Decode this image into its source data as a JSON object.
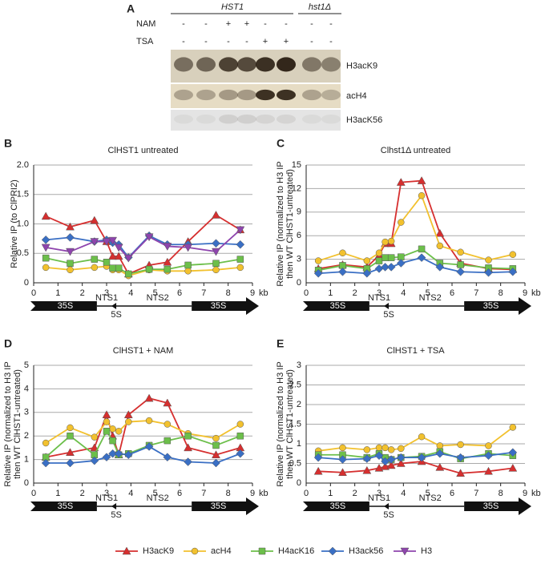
{
  "panel_a": {
    "panel": "A",
    "groups": [
      "HST1",
      "hst1Δ"
    ],
    "rows": [
      {
        "label": "NAM",
        "signs": [
          "-",
          "-",
          "+",
          "+",
          "-",
          "-",
          "-",
          "-"
        ]
      },
      {
        "label": "TSA",
        "signs": [
          "-",
          "-",
          "-",
          "-",
          "+",
          "+",
          "-",
          "-"
        ]
      }
    ],
    "blots": [
      "H3acK9",
      "acH4",
      "H3acK56"
    ]
  },
  "chart_data": [
    {
      "panel": "B",
      "type": "line",
      "title": "ClHST1 untreated",
      "ylabel": [
        "Relative IP (to ClPRI2)"
      ],
      "xlabel": "kb",
      "annotations": [
        "35S",
        "NTS1",
        "5S",
        "NTS2",
        "35S"
      ],
      "x": [
        0.5,
        1.5,
        2.5,
        3,
        3.25,
        3.5,
        3.9,
        4.75,
        5.5,
        6.35,
        7.5,
        8.5
      ],
      "xlim": [
        0,
        9
      ],
      "xticks": [
        0,
        1,
        2,
        3,
        4,
        5,
        6,
        7,
        8,
        9
      ],
      "ylim": [
        0,
        2
      ],
      "yticks": [
        0,
        0.5,
        {
          "value": 1,
          "label": "1.0"
        },
        1.5,
        {
          "value": 2,
          "label": "2.0"
        }
      ],
      "grid": true,
      "series": [
        {
          "name": "H3acK9",
          "color": "#d62f2f",
          "marker": "triangle",
          "values": [
            1.13,
            0.95,
            1.06,
            0.7,
            0.45,
            0.45,
            0.15,
            0.3,
            0.35,
            0.7,
            1.15,
            0.9
          ]
        },
        {
          "name": "acH4",
          "color": "#f2c12e",
          "marker": "circle",
          "values": [
            0.26,
            0.22,
            0.26,
            0.28,
            0.22,
            0.22,
            0.12,
            0.22,
            0.2,
            0.2,
            0.22,
            0.26
          ]
        },
        {
          "name": "H4acK16",
          "color": "#6cbf4a",
          "marker": "square",
          "values": [
            0.42,
            0.33,
            0.4,
            0.35,
            0.25,
            0.25,
            0.15,
            0.23,
            0.23,
            0.3,
            0.33,
            0.4
          ]
        },
        {
          "name": "H3ack56",
          "color": "#3a6fc4",
          "marker": "diamond",
          "values": [
            0.73,
            0.77,
            0.7,
            0.73,
            0.68,
            0.65,
            0.43,
            0.8,
            0.65,
            0.65,
            0.67,
            0.65
          ]
        },
        {
          "name": "H3",
          "color": "#8e44ad",
          "marker": "triangle-down",
          "values": [
            0.6,
            0.53,
            0.7,
            0.7,
            0.72,
            0.6,
            0.42,
            0.78,
            0.62,
            0.6,
            0.53,
            0.9
          ]
        }
      ]
    },
    {
      "panel": "C",
      "type": "line",
      "title": "Clhst1Δ untreated",
      "ylabel": [
        "Relative IP (normalized to H3 IP",
        "then WT ClHST1-untreated)"
      ],
      "xlabel": "kb",
      "annotations": [
        "35S",
        "NTS1",
        "5S",
        "NTS2",
        "35S"
      ],
      "x": [
        0.5,
        1.5,
        2.5,
        3,
        3.25,
        3.5,
        3.9,
        4.75,
        5.5,
        6.35,
        7.5,
        8.5
      ],
      "xlim": [
        0,
        9
      ],
      "xticks": [
        0,
        1,
        2,
        3,
        4,
        5,
        6,
        7,
        8,
        9
      ],
      "ylim": [
        0,
        15
      ],
      "yticks": [
        0,
        3,
        6,
        9,
        12,
        15
      ],
      "grid": true,
      "series": [
        {
          "name": "H3acK9",
          "color": "#d62f2f",
          "marker": "triangle",
          "values": [
            1.8,
            2.3,
            2.0,
            3.5,
            5.0,
            5.0,
            12.8,
            13.0,
            6.3,
            2.5,
            1.8,
            1.7
          ]
        },
        {
          "name": "acH4",
          "color": "#f2c12e",
          "marker": "circle",
          "values": [
            2.8,
            3.8,
            2.8,
            3.8,
            5.2,
            5.3,
            7.7,
            11.1,
            4.7,
            3.9,
            2.9,
            3.6
          ]
        },
        {
          "name": "H4acK16",
          "color": "#6cbf4a",
          "marker": "square",
          "values": [
            1.6,
            2.2,
            1.8,
            2.8,
            3.2,
            3.2,
            3.3,
            4.3,
            2.5,
            2.3,
            1.9,
            1.8
          ]
        },
        {
          "name": "H3ack56",
          "color": "#3a6fc4",
          "marker": "diamond",
          "values": [
            1.2,
            1.4,
            1.2,
            1.8,
            2.0,
            2.0,
            2.5,
            3.2,
            2.0,
            1.4,
            1.3,
            1.4
          ]
        }
      ]
    },
    {
      "panel": "D",
      "type": "line",
      "title": "ClHST1 + NAM",
      "ylabel": [
        "Relative IP (normalized to H3 IP",
        "then WT ClHST1-untreated)"
      ],
      "xlabel": "kb",
      "annotations": [
        "35S",
        "NTS1",
        "5S",
        "NTS2",
        "35S"
      ],
      "x": [
        0.5,
        1.5,
        2.5,
        3,
        3.25,
        3.5,
        3.9,
        4.75,
        5.5,
        6.35,
        7.5,
        8.5
      ],
      "xlim": [
        0,
        9
      ],
      "xticks": [
        0,
        1,
        2,
        3,
        4,
        5,
        6,
        7,
        8,
        9
      ],
      "ylim": [
        0,
        5
      ],
      "yticks": [
        0,
        1,
        2,
        3,
        4,
        5
      ],
      "grid": true,
      "series": [
        {
          "name": "H3acK9",
          "color": "#d62f2f",
          "marker": "triangle",
          "values": [
            1.1,
            1.3,
            1.5,
            2.9,
            2.0,
            1.2,
            2.9,
            3.6,
            3.4,
            1.5,
            1.2,
            1.5
          ]
        },
        {
          "name": "acH4",
          "color": "#f2c12e",
          "marker": "circle",
          "values": [
            1.7,
            2.35,
            1.95,
            2.6,
            2.3,
            2.2,
            2.6,
            2.65,
            2.5,
            2.1,
            1.9,
            2.5
          ]
        },
        {
          "name": "H4acK16",
          "color": "#6cbf4a",
          "marker": "square",
          "values": [
            1.1,
            2.0,
            1.2,
            2.2,
            1.8,
            1.2,
            1.25,
            1.6,
            1.8,
            2.0,
            1.6,
            2.0
          ]
        },
        {
          "name": "H3ack56",
          "color": "#3a6fc4",
          "marker": "diamond",
          "values": [
            0.85,
            0.85,
            0.95,
            1.1,
            1.25,
            1.25,
            1.2,
            1.55,
            1.1,
            0.9,
            0.85,
            1.25
          ]
        }
      ]
    },
    {
      "panel": "E",
      "type": "line",
      "title": "ClHST1 + TSA",
      "ylabel": [
        "Relative IP (normalized to H3 IP",
        "then WT ClHST1-untreated)"
      ],
      "xlabel": "kb",
      "annotations": [
        "35S",
        "NTS1",
        "5S",
        "NTS2",
        "35S"
      ],
      "x": [
        0.5,
        1.5,
        2.5,
        3,
        3.25,
        3.5,
        3.9,
        4.75,
        5.5,
        6.35,
        7.5,
        8.5
      ],
      "xlim": [
        0,
        9
      ],
      "xticks": [
        0,
        1,
        2,
        3,
        4,
        5,
        6,
        7,
        8,
        9
      ],
      "ylim": [
        0,
        3
      ],
      "yticks": [
        0,
        0.5,
        1,
        1.5,
        2,
        2.5,
        3
      ],
      "grid": true,
      "series": [
        {
          "name": "H3acK9",
          "color": "#d62f2f",
          "marker": "triangle",
          "values": [
            0.3,
            0.27,
            0.32,
            0.38,
            0.42,
            0.45,
            0.5,
            0.55,
            0.4,
            0.25,
            0.3,
            0.38
          ]
        },
        {
          "name": "acH4",
          "color": "#f2c12e",
          "marker": "circle",
          "values": [
            0.82,
            0.9,
            0.85,
            0.9,
            0.9,
            0.85,
            0.88,
            1.18,
            0.95,
            0.98,
            0.95,
            1.42
          ]
        },
        {
          "name": "H4acK16",
          "color": "#6cbf4a",
          "marker": "square",
          "values": [
            0.72,
            0.72,
            0.65,
            0.75,
            0.65,
            0.6,
            0.65,
            0.68,
            0.8,
            0.62,
            0.75,
            0.7
          ]
        },
        {
          "name": "H3ack56",
          "color": "#3a6fc4",
          "marker": "diamond",
          "values": [
            0.65,
            0.6,
            0.62,
            0.7,
            0.55,
            0.6,
            0.65,
            0.65,
            0.75,
            0.65,
            0.7,
            0.78
          ]
        }
      ]
    }
  ]
}
